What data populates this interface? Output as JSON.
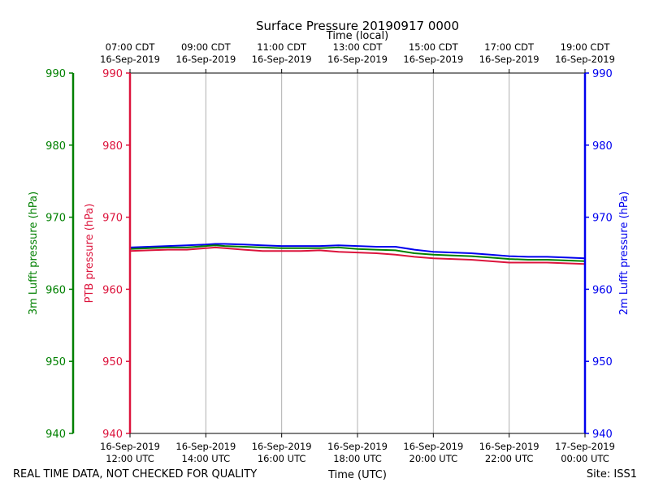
{
  "chart_data": {
    "type": "line",
    "title": "Surface Pressure 20190917 0000",
    "xlabel": "Time (UTC)",
    "top_xlabel": "Time (local)",
    "footer_left": "REAL TIME DATA, NOT CHECKED FOR QUALITY",
    "footer_right": "Site: ISS1",
    "xlim": [
      0,
      7
    ],
    "ylim": [
      940,
      990
    ],
    "y_ticks": [
      940,
      950,
      960,
      970,
      980,
      990
    ],
    "grid": "vertical",
    "bottom_ticks": [
      {
        "h": 0,
        "line1": "16-Sep-2019",
        "line2": "12:00 UTC"
      },
      {
        "h": 2,
        "line1": "16-Sep-2019",
        "line2": "14:00 UTC"
      },
      {
        "h": 4,
        "line1": "16-Sep-2019",
        "line2": "16:00 UTC"
      },
      {
        "h": 6,
        "line1": "16-Sep-2019",
        "line2": "18:00 UTC"
      },
      {
        "h": 8,
        "line1": "16-Sep-2019",
        "line2": "20:00 UTC"
      },
      {
        "h": 10,
        "line1": "16-Sep-2019",
        "line2": "22:00 UTC"
      },
      {
        "h": 12,
        "line1": "17-Sep-2019",
        "line2": "00:00 UTC"
      }
    ],
    "top_ticks": [
      {
        "h": 0,
        "line1": "07:00 CDT",
        "line2": "16-Sep-2019"
      },
      {
        "h": 2,
        "line1": "09:00 CDT",
        "line2": "16-Sep-2019"
      },
      {
        "h": 4,
        "line1": "11:00 CDT",
        "line2": "16-Sep-2019"
      },
      {
        "h": 6,
        "line1": "13:00 CDT",
        "line2": "16-Sep-2019"
      },
      {
        "h": 8,
        "line1": "15:00 CDT",
        "line2": "16-Sep-2019"
      },
      {
        "h": 10,
        "line1": "17:00 CDT",
        "line2": "16-Sep-2019"
      },
      {
        "h": 12,
        "line1": "19:00 CDT",
        "line2": "16-Sep-2019"
      }
    ],
    "axes": {
      "lufft3m": {
        "label": "3m Lufft pressure (hPa)",
        "color": "#008000"
      },
      "ptb": {
        "label": "PTB pressure (hPa)",
        "color": "#dc143c"
      },
      "lufft2m": {
        "label": "2m Lufft pressure (hPa)",
        "color": "#0000ee"
      }
    },
    "series": [
      {
        "color": "#0000ee",
        "x": [
          0,
          0.5,
          1,
          1.5,
          2,
          2.25,
          2.5,
          3,
          3.5,
          4,
          4.5,
          5,
          5.5,
          6,
          6.5,
          7,
          7.5,
          8,
          8.5,
          9,
          9.5,
          10,
          10.5,
          11,
          11.5,
          12
        ],
        "values": [
          965.8,
          965.9,
          966.0,
          966.1,
          966.2,
          966.3,
          966.3,
          966.2,
          966.1,
          966.0,
          966.0,
          966.0,
          966.1,
          966.0,
          965.9,
          965.9,
          965.5,
          965.2,
          965.1,
          965.0,
          964.8,
          964.6,
          964.5,
          964.5,
          964.4,
          964.3
        ]
      },
      {
        "color": "#008000",
        "x": [
          0,
          0.5,
          1,
          1.5,
          2,
          2.25,
          2.5,
          3,
          3.5,
          4,
          4.5,
          5,
          5.5,
          6,
          6.5,
          7,
          7.5,
          8,
          8.5,
          9,
          9.5,
          10,
          10.5,
          11,
          11.5,
          12
        ],
        "values": [
          965.6,
          965.7,
          965.8,
          965.8,
          966.0,
          966.1,
          966.0,
          965.9,
          965.8,
          965.7,
          965.7,
          965.7,
          965.8,
          965.6,
          965.5,
          965.4,
          965.0,
          964.8,
          964.7,
          964.6,
          964.4,
          964.2,
          964.1,
          964.1,
          964.0,
          963.9
        ]
      },
      {
        "color": "#dc143c",
        "x": [
          0,
          0.5,
          1,
          1.5,
          2,
          2.25,
          2.5,
          3,
          3.5,
          4,
          4.5,
          5,
          5.5,
          6,
          6.5,
          7,
          7.5,
          8,
          8.5,
          9,
          9.5,
          10,
          10.5,
          11,
          11.5,
          12
        ],
        "values": [
          965.3,
          965.4,
          965.5,
          965.5,
          965.7,
          965.8,
          965.7,
          965.5,
          965.3,
          965.3,
          965.3,
          965.4,
          965.2,
          965.1,
          965.0,
          964.8,
          964.5,
          964.3,
          964.2,
          964.1,
          963.9,
          963.7,
          963.7,
          963.7,
          963.6,
          963.5
        ]
      }
    ]
  }
}
